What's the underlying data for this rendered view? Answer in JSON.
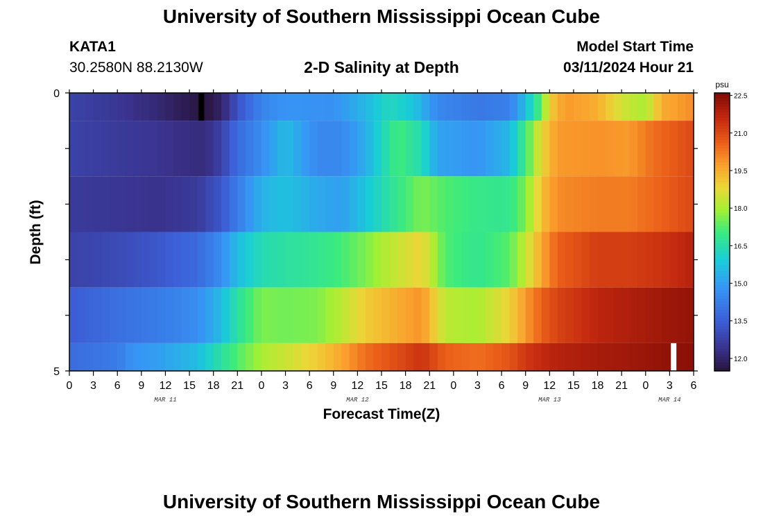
{
  "header": {
    "title": "University of Southern Mississippi Ocean Cube",
    "station_id": "KATA1",
    "station_coords": "30.2580N  88.2130W",
    "subtitle": "2-D Salinity at Depth",
    "start_label": "Model Start Time",
    "start_value": "03/11/2024 Hour 21"
  },
  "footer": {
    "title": "University of Southern Mississippi Ocean Cube"
  },
  "colors": {
    "background": "#ffffff",
    "now_marker_start": "#000000",
    "now_marker_end": "#ffffff"
  },
  "chart_data": {
    "type": "heatmap",
    "title": "2-D Salinity at Depth",
    "xlabel": "Forecast Time(Z)",
    "ylabel": "Depth (ft)",
    "x_tick_labels": [
      "0",
      "3",
      "6",
      "9",
      "12",
      "15",
      "18",
      "21",
      "0",
      "3",
      "6",
      "9",
      "12",
      "15",
      "18",
      "21",
      "0",
      "3",
      "6",
      "9",
      "12",
      "15",
      "18",
      "21",
      "0",
      "3",
      "6"
    ],
    "date_labels": [
      "MAR 11",
      "MAR 12",
      "MAR 13",
      "MAR 14"
    ],
    "y_tick_labels": [
      "0",
      "5"
    ],
    "ylim": [
      0,
      5
    ],
    "x_range_hours": [
      0,
      78
    ],
    "colorbar": {
      "unit": "psu",
      "tick_labels": [
        "22.5",
        "21.0",
        "19.5",
        "18.0",
        "16.5",
        "15.0",
        "13.5",
        "12.0"
      ],
      "range": [
        11.5,
        22.6
      ]
    },
    "markers": [
      {
        "hour": 16.5,
        "layer": 0
      },
      {
        "hour": 75.5,
        "layer": 5
      }
    ],
    "layers": [
      {
        "depth_range": [
          0,
          0.5
        ],
        "profile": [
          [
            0,
            12.8
          ],
          [
            6,
            12.5
          ],
          [
            10,
            12.2
          ],
          [
            14,
            11.8
          ],
          [
            17,
            11.5
          ],
          [
            19,
            12.0
          ],
          [
            21,
            13.2
          ],
          [
            24,
            14.4
          ],
          [
            27,
            14.8
          ],
          [
            33,
            14.7
          ],
          [
            37,
            15.5
          ],
          [
            40,
            16.3
          ],
          [
            43,
            15.8
          ],
          [
            46,
            14.5
          ],
          [
            51,
            14.1
          ],
          [
            55,
            14.3
          ],
          [
            57,
            15.6
          ],
          [
            58,
            16.5
          ],
          [
            59,
            17.3
          ],
          [
            60,
            19.0
          ],
          [
            62,
            19.8
          ],
          [
            66,
            19.5
          ],
          [
            69,
            18.5
          ],
          [
            72,
            18.0
          ],
          [
            74,
            19.5
          ],
          [
            78,
            20.0
          ]
        ]
      },
      {
        "depth_range": [
          0.5,
          1.5
        ],
        "profile": [
          [
            0,
            12.8
          ],
          [
            6,
            12.6
          ],
          [
            10,
            12.5
          ],
          [
            14,
            12.3
          ],
          [
            17,
            12.2
          ],
          [
            19,
            12.8
          ],
          [
            21,
            13.8
          ],
          [
            24,
            14.6
          ],
          [
            27,
            15.6
          ],
          [
            31,
            14.5
          ],
          [
            34,
            14.5
          ],
          [
            37,
            15.3
          ],
          [
            41,
            17.1
          ],
          [
            44,
            16.4
          ],
          [
            46,
            15.1
          ],
          [
            51,
            14.8
          ],
          [
            55,
            15.5
          ],
          [
            57,
            17.0
          ],
          [
            59,
            18.8
          ],
          [
            61,
            19.8
          ],
          [
            66,
            19.9
          ],
          [
            70,
            19.8
          ],
          [
            73,
            20.4
          ],
          [
            78,
            21.0
          ]
        ]
      },
      {
        "depth_range": [
          1.5,
          2.5
        ],
        "profile": [
          [
            0,
            12.6
          ],
          [
            6,
            12.5
          ],
          [
            11,
            12.4
          ],
          [
            16,
            12.6
          ],
          [
            19,
            13.3
          ],
          [
            21,
            14.2
          ],
          [
            24,
            15.4
          ],
          [
            27,
            15.7
          ],
          [
            31,
            15.2
          ],
          [
            34,
            15.0
          ],
          [
            37,
            15.8
          ],
          [
            40,
            16.6
          ],
          [
            44,
            17.6
          ],
          [
            47,
            17.2
          ],
          [
            51,
            16.9
          ],
          [
            55,
            16.8
          ],
          [
            57,
            17.6
          ],
          [
            59,
            19.2
          ],
          [
            61,
            20.0
          ],
          [
            66,
            20.2
          ],
          [
            70,
            20.2
          ],
          [
            74,
            20.6
          ],
          [
            78,
            21.0
          ]
        ]
      },
      {
        "depth_range": [
          2.5,
          3.5
        ],
        "profile": [
          [
            0,
            12.8
          ],
          [
            6,
            13.0
          ],
          [
            11,
            13.3
          ],
          [
            16,
            13.8
          ],
          [
            19,
            14.6
          ],
          [
            21,
            15.6
          ],
          [
            24,
            16.4
          ],
          [
            27,
            16.6
          ],
          [
            31,
            16.8
          ],
          [
            34,
            17.1
          ],
          [
            37,
            17.6
          ],
          [
            40,
            18.2
          ],
          [
            44,
            18.9
          ],
          [
            47,
            17.2
          ],
          [
            51,
            16.8
          ],
          [
            55,
            17.3
          ],
          [
            57,
            18.3
          ],
          [
            59,
            19.6
          ],
          [
            61,
            20.6
          ],
          [
            66,
            21.2
          ],
          [
            70,
            21.2
          ],
          [
            74,
            21.4
          ],
          [
            78,
            21.8
          ]
        ]
      },
      {
        "depth_range": [
          3.5,
          4.5
        ],
        "profile": [
          [
            0,
            13.4
          ],
          [
            6,
            13.9
          ],
          [
            11,
            14.2
          ],
          [
            16,
            14.6
          ],
          [
            19,
            15.6
          ],
          [
            21,
            16.6
          ],
          [
            24,
            17.6
          ],
          [
            27,
            17.5
          ],
          [
            31,
            17.6
          ],
          [
            34,
            18.2
          ],
          [
            37,
            19.0
          ],
          [
            40,
            19.4
          ],
          [
            44,
            19.9
          ],
          [
            47,
            18.2
          ],
          [
            51,
            18.0
          ],
          [
            55,
            18.9
          ],
          [
            57,
            19.8
          ],
          [
            59,
            20.6
          ],
          [
            61,
            21.1
          ],
          [
            66,
            21.7
          ],
          [
            70,
            21.9
          ],
          [
            74,
            22.1
          ],
          [
            78,
            22.3
          ]
        ]
      },
      {
        "depth_range": [
          4.5,
          5
        ],
        "profile": [
          [
            0,
            13.8
          ],
          [
            6,
            14.2
          ],
          [
            8,
            14.8
          ],
          [
            11,
            15.0
          ],
          [
            16,
            15.6
          ],
          [
            19,
            16.6
          ],
          [
            21,
            17.2
          ],
          [
            24,
            18.0
          ],
          [
            27,
            18.4
          ],
          [
            31,
            19.0
          ],
          [
            34,
            19.6
          ],
          [
            37,
            20.4
          ],
          [
            40,
            20.8
          ],
          [
            44,
            21.4
          ],
          [
            47,
            20.6
          ],
          [
            51,
            20.4
          ],
          [
            55,
            20.8
          ],
          [
            57,
            21.3
          ],
          [
            59,
            21.6
          ],
          [
            61,
            21.8
          ],
          [
            66,
            22.0
          ],
          [
            70,
            22.1
          ],
          [
            74,
            22.3
          ],
          [
            78,
            22.4
          ]
        ]
      }
    ]
  }
}
